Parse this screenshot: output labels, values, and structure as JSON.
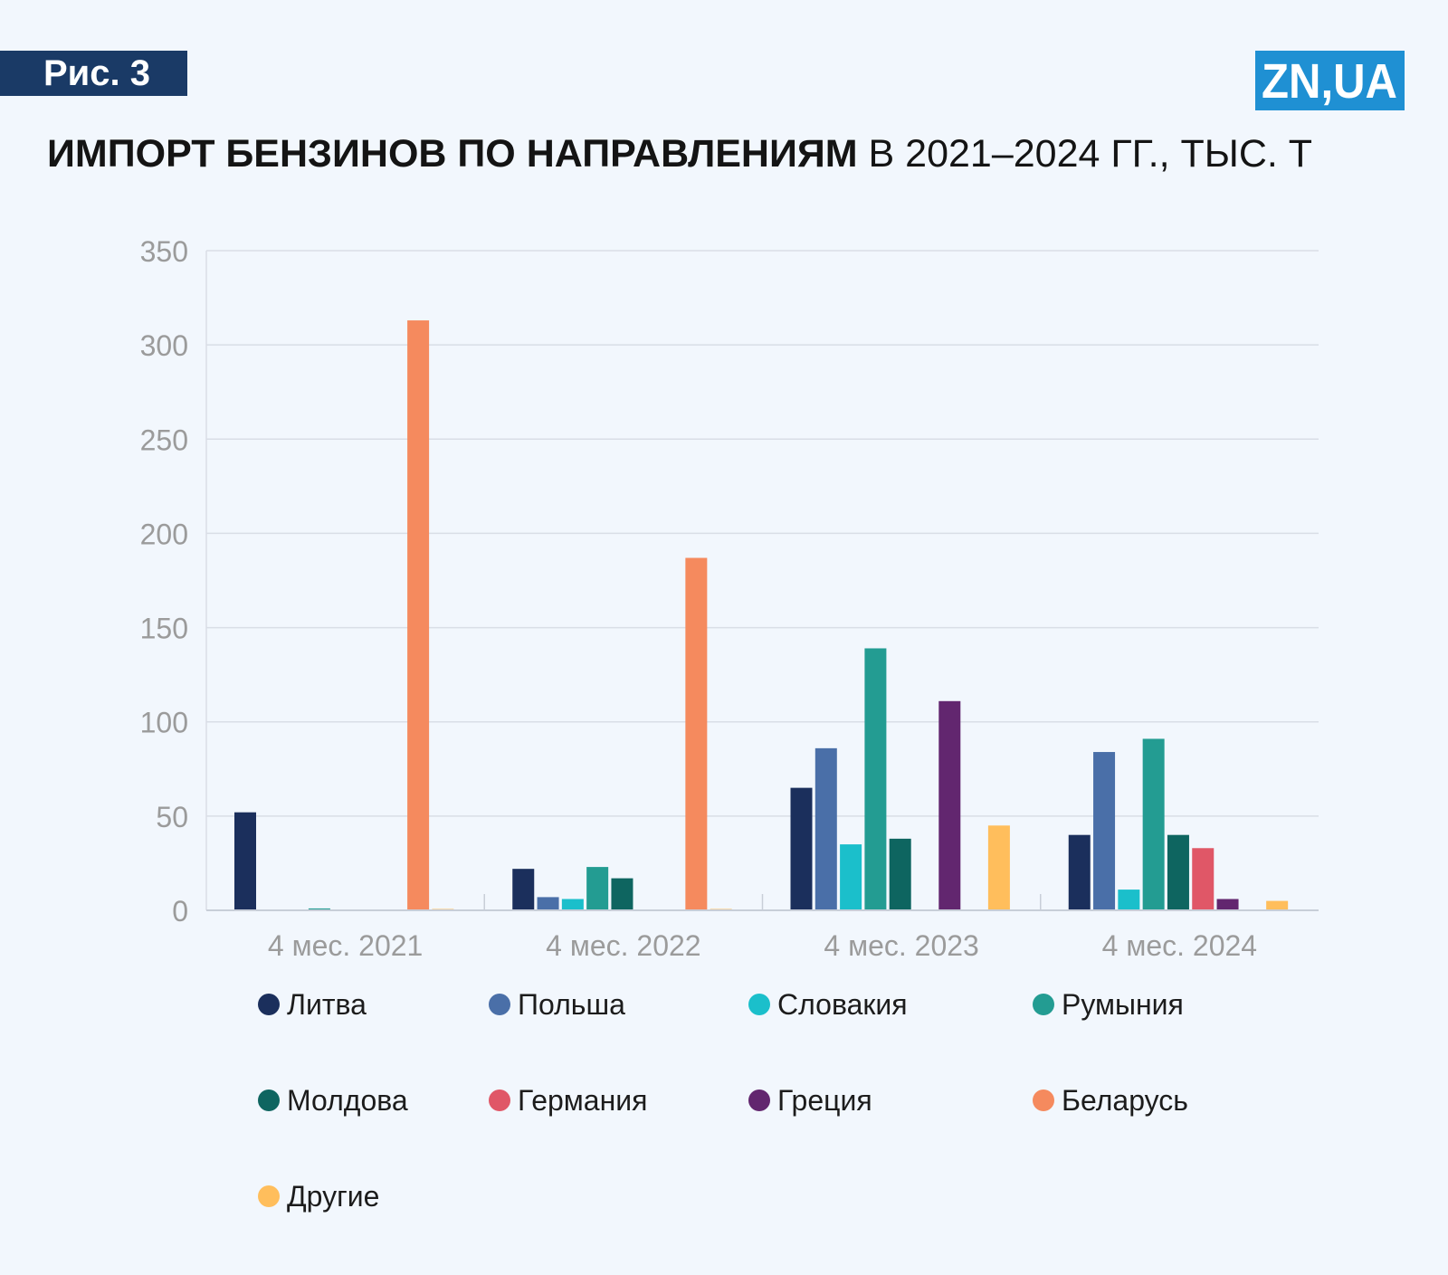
{
  "figure_label": "Рис. 3",
  "logo": {
    "text": "ZN,UA",
    "color": "#1f90d3"
  },
  "title": {
    "bold": "ИМПОРТ БЕНЗИНОВ ПО НАПРАВЛЕНИЯМ",
    "regular": " В 2021–2024 ГГ., ТЫС. Т"
  },
  "chart_data": {
    "type": "bar",
    "title": "ИМПОРТ БЕНЗИНОВ ПО НАПРАВЛЕНИЯМ В 2021–2024 ГГ., ТЫС. Т",
    "xlabel": "",
    "ylabel": "",
    "ylim": [
      0,
      350
    ],
    "yticks": [
      0,
      50,
      100,
      150,
      200,
      250,
      300,
      350
    ],
    "grid": true,
    "legend_position": "bottom",
    "categories": [
      "4 мес. 2021",
      "4 мес. 2022",
      "4 мес. 2023",
      "4 мес. 2024"
    ],
    "series": [
      {
        "name": "Литва",
        "color": "#1b2f5c",
        "values": [
          52,
          22,
          65,
          40
        ]
      },
      {
        "name": "Польша",
        "color": "#4a6fa8",
        "values": [
          0,
          7,
          86,
          84
        ]
      },
      {
        "name": "Словакия",
        "color": "#1bbfcb",
        "values": [
          0,
          6,
          35,
          11
        ]
      },
      {
        "name": "Румыния",
        "color": "#239c92",
        "values": [
          1,
          23,
          139,
          91
        ]
      },
      {
        "name": "Молдова",
        "color": "#0e6560",
        "values": [
          0,
          17,
          38,
          40
        ]
      },
      {
        "name": "Германия",
        "color": "#e05767",
        "values": [
          0,
          0,
          0,
          33
        ]
      },
      {
        "name": "Греция",
        "color": "#62266f",
        "values": [
          0,
          0,
          111,
          6
        ]
      },
      {
        "name": "Беларусь",
        "color": "#f58a5e",
        "values": [
          313,
          187,
          0,
          0
        ]
      },
      {
        "name": "Другие",
        "color": "#ffbe5c",
        "values": [
          0.3,
          0.5,
          45,
          5
        ]
      }
    ]
  }
}
